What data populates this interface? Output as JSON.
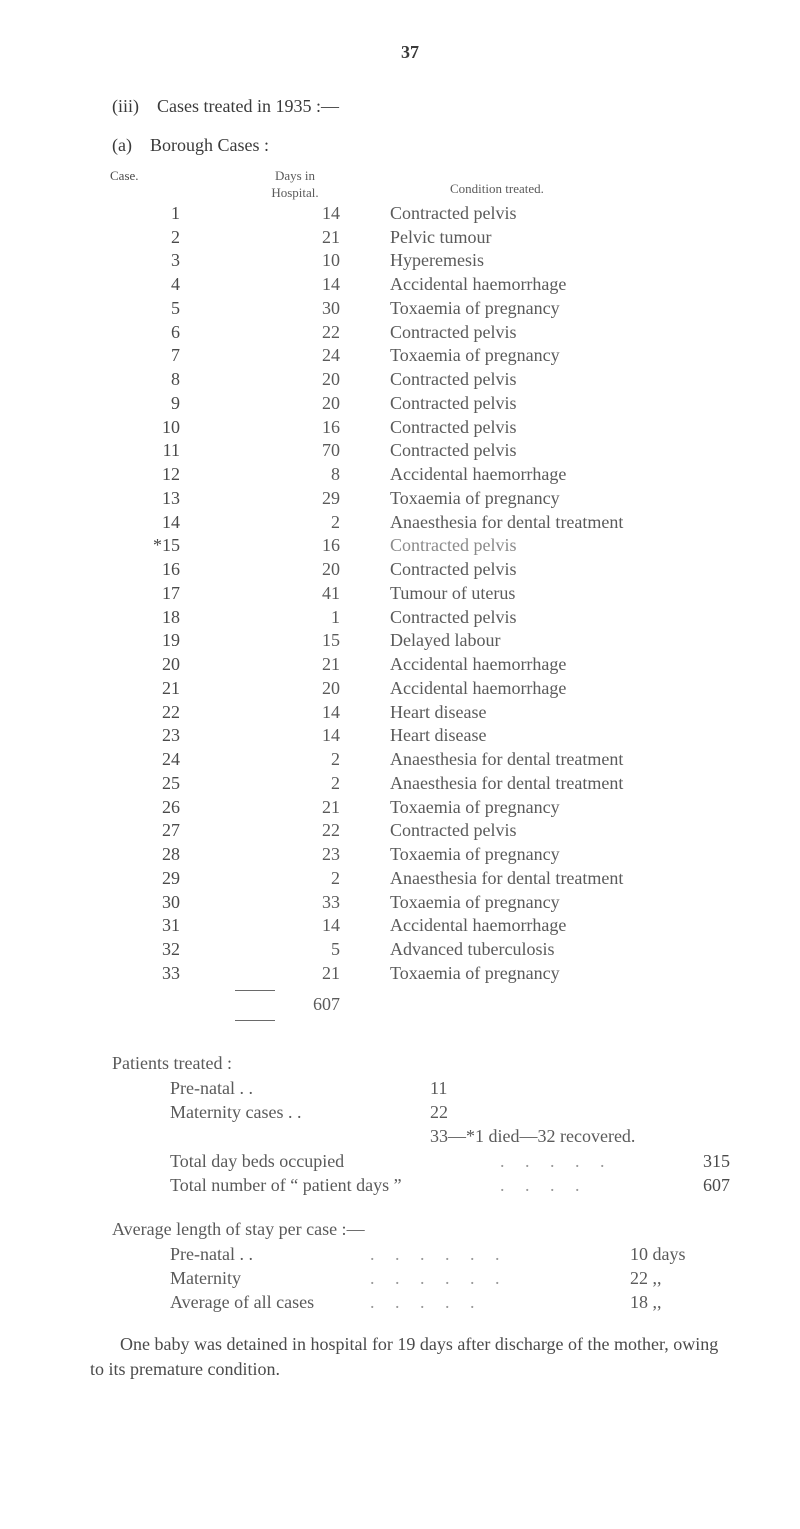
{
  "pageNumber": "37",
  "headingIII": "(iii) Cases treated in 1935 :—",
  "headingA": "(a) Borough Cases :",
  "tableHeaders": {
    "case": "Case.",
    "daysTop": "Days in",
    "daysBottom": "Hospital.",
    "condition": "Condition treated."
  },
  "rows": [
    {
      "case": "1",
      "days": "14",
      "cond": "Contracted pelvis"
    },
    {
      "case": "2",
      "days": "21",
      "cond": "Pelvic tumour"
    },
    {
      "case": "3",
      "days": "10",
      "cond": "Hyperemesis"
    },
    {
      "case": "4",
      "days": "14",
      "cond": "Accidental haemorrhage"
    },
    {
      "case": "5",
      "days": "30",
      "cond": "Toxaemia of pregnancy"
    },
    {
      "case": "6",
      "days": "22",
      "cond": "Contracted pelvis"
    },
    {
      "case": "7",
      "days": "24",
      "cond": "Toxaemia of pregnancy"
    },
    {
      "case": "8",
      "days": "20",
      "cond": "Contracted pelvis"
    },
    {
      "case": "9",
      "days": "20",
      "cond": "Contracted pelvis"
    },
    {
      "case": "10",
      "days": "16",
      "cond": "Contracted pelvis"
    },
    {
      "case": "11",
      "days": "70",
      "cond": "Contracted pelvis"
    },
    {
      "case": "12",
      "days": "8",
      "cond": "Accidental haemorrhage"
    },
    {
      "case": "13",
      "days": "29",
      "cond": "Toxaemia of pregnancy"
    },
    {
      "case": "14",
      "days": "2",
      "cond": "Anaesthesia for dental treatment"
    },
    {
      "case": "*15",
      "days": "16",
      "cond": "Contracted pelvis",
      "light": true
    },
    {
      "case": "16",
      "days": "20",
      "cond": "Contracted pelvis"
    },
    {
      "case": "17",
      "days": "41",
      "cond": "Tumour of uterus"
    },
    {
      "case": "18",
      "days": "1",
      "cond": "Contracted pelvis"
    },
    {
      "case": "19",
      "days": "15",
      "cond": "Delayed labour"
    },
    {
      "case": "20",
      "days": "21",
      "cond": "Accidental haemorrhage"
    },
    {
      "case": "21",
      "days": "20",
      "cond": "Accidental haemorrhage"
    },
    {
      "case": "22",
      "days": "14",
      "cond": "Heart disease"
    },
    {
      "case": "23",
      "days": "14",
      "cond": "Heart disease"
    },
    {
      "case": "24",
      "days": "2",
      "cond": "Anaesthesia for dental treatment"
    },
    {
      "case": "25",
      "days": "2",
      "cond": "Anaesthesia for dental treatment"
    },
    {
      "case": "26",
      "days": "21",
      "cond": "Toxaemia of pregnancy"
    },
    {
      "case": "27",
      "days": "22",
      "cond": "Contracted pelvis"
    },
    {
      "case": "28",
      "days": "23",
      "cond": "Toxaemia of pregnancy"
    },
    {
      "case": "29",
      "days": "2",
      "cond": "Anaesthesia for dental treatment"
    },
    {
      "case": "30",
      "days": "33",
      "cond": "Toxaemia of pregnancy"
    },
    {
      "case": "31",
      "days": "14",
      "cond": "Accidental haemorrhage"
    },
    {
      "case": "32",
      "days": "5",
      "cond": "Advanced tuberculosis"
    },
    {
      "case": "33",
      "days": "21",
      "cond": "Toxaemia of pregnancy"
    }
  ],
  "total": "607",
  "patientsTitle": "Patients treated :",
  "stats": {
    "prenatal_label": "Pre-natal . .",
    "prenatal_value": "11",
    "maternity_label": "Maternity cases  . .",
    "maternity_value": "22",
    "summary": "33—*1 died—32 recovered.",
    "daybeds_label": "Total day beds occupied",
    "daybeds_value": "315",
    "patientdays_label": "Total number of “ patient days ”",
    "patientdays_value": "607"
  },
  "avgTitle": "Average length of stay per case :—",
  "avg": {
    "prenatal_label": "Pre-natal . .",
    "prenatal_value": "10 days",
    "maternity_label": "Maternity",
    "maternity_value": "22   ,,",
    "all_label": "Average of all cases",
    "all_value": "18   ,,"
  },
  "footnote": "One baby was detained in hospital for 19 days after discharge of the mother, owing to its premature condition."
}
